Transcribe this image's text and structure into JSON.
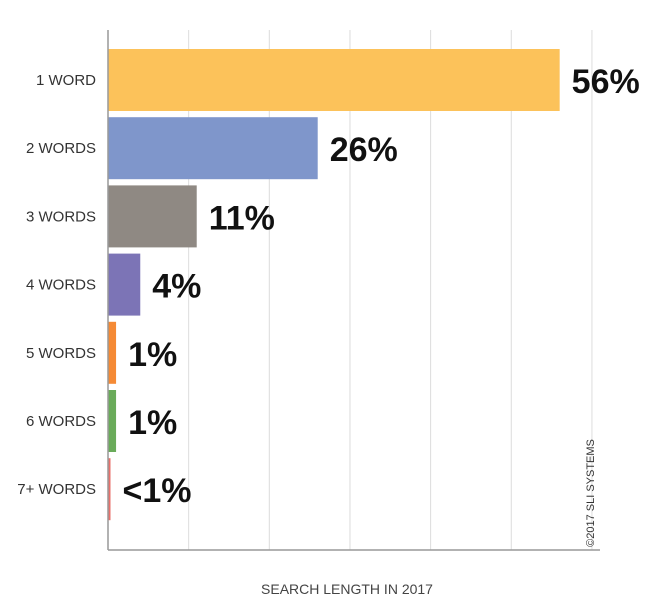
{
  "chart_data": {
    "type": "bar",
    "orientation": "horizontal",
    "categories": [
      "1 WORD",
      "2 WORDS",
      "3 WORDS",
      "4 WORDS",
      "5 WORDS",
      "6 WORDS",
      "7+ WORDS"
    ],
    "values": [
      56,
      26,
      11,
      4,
      1,
      1,
      0.3
    ],
    "value_labels": [
      "56%",
      "26%",
      "11%",
      "4%",
      "1%",
      "1%",
      "<1%"
    ],
    "colors": [
      "#fcc25a",
      "#7f96cb",
      "#8f8983",
      "#7c74b6",
      "#f58a35",
      "#6aab5a",
      "#e8706b"
    ],
    "xlabel": "SEARCH LENGTH IN 2017",
    "xlim": [
      0,
      61
    ],
    "grid": true,
    "credit": "©2017 SLI SYSTEMS"
  }
}
